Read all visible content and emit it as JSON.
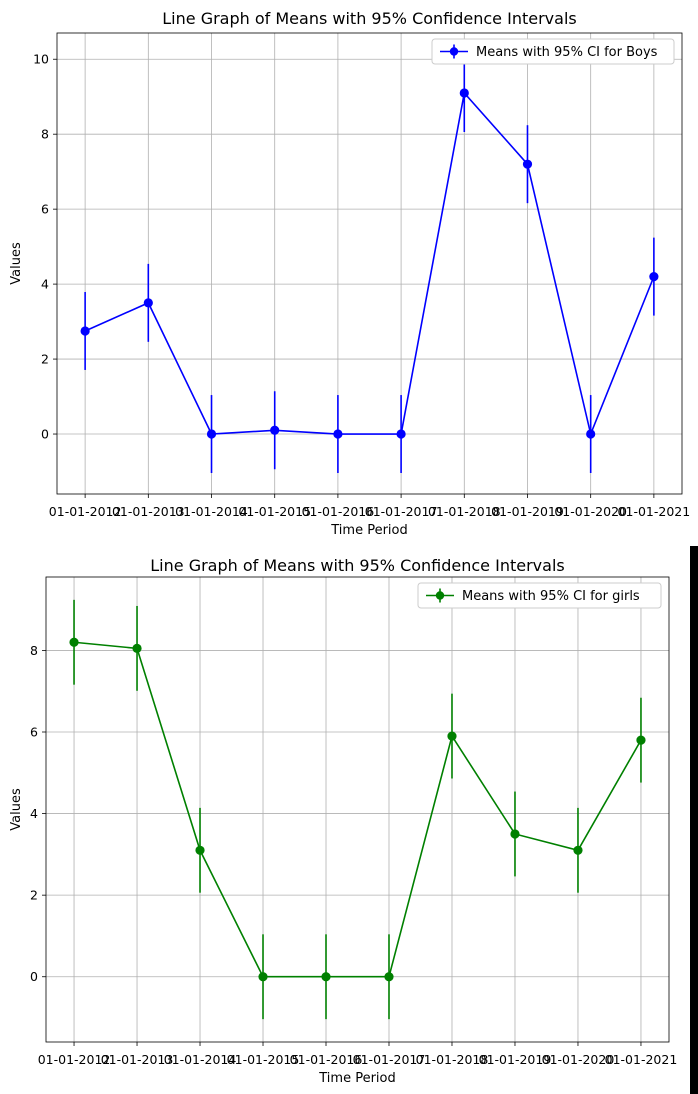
{
  "chart_data": [
    {
      "type": "line",
      "title": "Line Graph of Means with 95% Confidence Intervals",
      "xlabel": "Time Period",
      "ylabel": "Values",
      "categories": [
        "01-01-2012",
        "01-01-2013",
        "01-01-2014",
        "01-01-2015",
        "01-01-2016",
        "01-01-2017",
        "01-01-2018",
        "01-01-2019",
        "01-01-2020",
        "01-01-2021"
      ],
      "ylim": [
        -1.6,
        10.7
      ],
      "yticks": [
        "0",
        "2",
        "4",
        "6",
        "8",
        "10"
      ],
      "grid": true,
      "legend_position": "top-right",
      "series": [
        {
          "name": "Means with 95% CI for Boys",
          "color": "#0000ff",
          "values": [
            2.75,
            3.5,
            0.0,
            0.1,
            0.0,
            0.0,
            9.1,
            7.2,
            0.0,
            4.2
          ],
          "ci_half_width": [
            1.04,
            1.04,
            1.04,
            1.04,
            1.04,
            1.04,
            1.04,
            1.04,
            1.04,
            1.04
          ]
        }
      ]
    },
    {
      "type": "line",
      "title": "Line Graph of Means with 95% Confidence Intervals",
      "xlabel": "Time Period",
      "ylabel": "Values",
      "categories": [
        "01-01-2012",
        "01-01-2013",
        "01-01-2014",
        "01-01-2015",
        "01-01-2016",
        "01-01-2017",
        "01-01-2018",
        "01-01-2019",
        "01-01-2020",
        "01-01-2021"
      ],
      "ylim": [
        -1.6,
        9.8
      ],
      "yticks": [
        "0",
        "2",
        "4",
        "6",
        "8"
      ],
      "grid": true,
      "legend_position": "top-right",
      "series": [
        {
          "name": "Means with 95% CI for girls",
          "color": "#008000",
          "values": [
            8.2,
            8.05,
            3.1,
            0.0,
            0.0,
            0.0,
            5.9,
            3.5,
            3.1,
            5.8
          ],
          "ci_half_width": [
            1.04,
            1.04,
            1.04,
            1.04,
            1.04,
            1.04,
            1.04,
            1.04,
            1.04,
            1.04
          ]
        }
      ]
    }
  ]
}
